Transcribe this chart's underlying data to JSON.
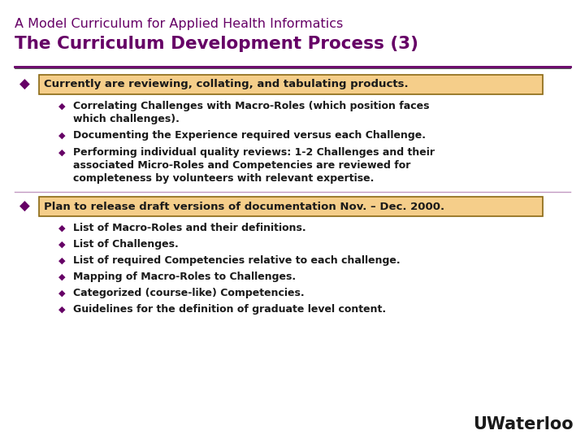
{
  "bg_color": "#ffffff",
  "title_line1": "A Model Curriculum for Applied Health Informatics",
  "title_line2": "The Curriculum Development Process (3)",
  "title_color": "#660066",
  "title_line1_size": 11.5,
  "title_line2_size": 15.5,
  "separator_color": "#660066",
  "bullet_color": "#660066",
  "text_color": "#1a1a1a",
  "highlight_bg": "#f5ce8a",
  "highlight_border": "#8b6914",
  "diamond": "◆",
  "section1_header": "Currently are reviewing, collating, and tabulating products.",
  "section1_items": [
    "Correlating Challenges with Macro-Roles (which position faces\nwhich challenges).",
    "Documenting the Experience required versus each Challenge.",
    "Performing individual quality reviews: 1-2 Challenges and their\nassociated Micro-Roles and Competencies are reviewed for\ncompleteness by volunteers with relevant expertise."
  ],
  "section2_header": "Plan to release draft versions of documentation Nov. – Dec. 2000.",
  "section2_items": [
    "List of Macro-Roles and their definitions.",
    "List of Challenges.",
    "List of required Competencies relative to each challenge.",
    "Mapping of Macro-Roles to Challenges.",
    "Categorized (course-like) Competencies.",
    "Guidelines for the definition of graduate level content."
  ],
  "watermark": "UWaterloo",
  "watermark_color": "#1a1a1a",
  "watermark_size": 15,
  "fig_w": 7.2,
  "fig_h": 5.4,
  "dpi": 100
}
